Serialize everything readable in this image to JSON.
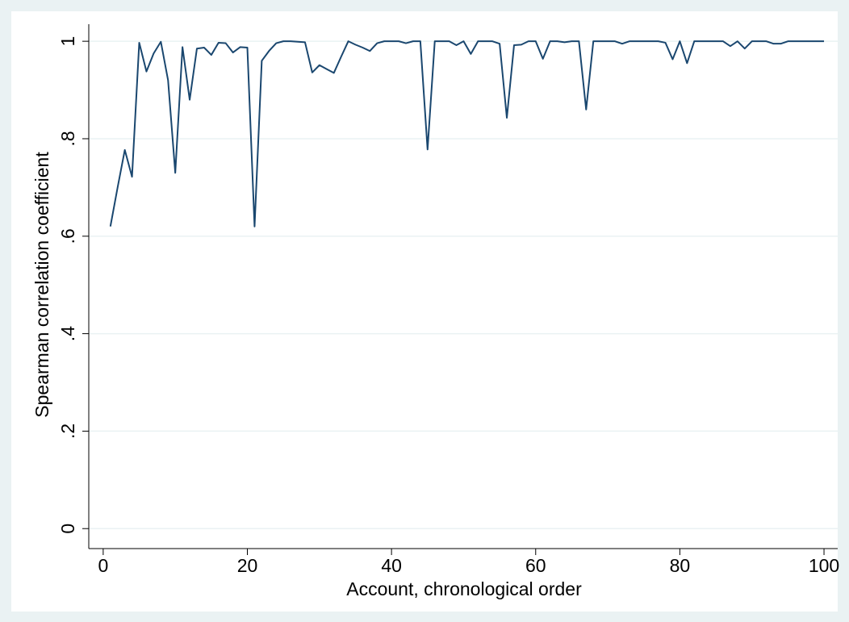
{
  "chart_data": {
    "type": "line",
    "xlabel": "Account, chronological order",
    "ylabel": "Spearman correlation coefficient",
    "x": [
      1,
      2,
      3,
      4,
      5,
      6,
      7,
      8,
      9,
      10,
      11,
      12,
      13,
      14,
      15,
      16,
      17,
      18,
      19,
      20,
      21,
      22,
      23,
      24,
      25,
      26,
      27,
      28,
      29,
      30,
      31,
      32,
      33,
      34,
      35,
      36,
      37,
      38,
      39,
      40,
      41,
      42,
      43,
      44,
      45,
      46,
      47,
      48,
      49,
      50,
      51,
      52,
      53,
      54,
      55,
      56,
      57,
      58,
      59,
      60,
      61,
      62,
      63,
      64,
      65,
      66,
      67,
      68,
      69,
      70,
      71,
      72,
      73,
      74,
      75,
      76,
      77,
      78,
      79,
      80,
      81,
      82,
      83,
      84,
      85,
      86,
      87,
      88,
      89,
      90,
      91,
      92,
      93,
      94,
      95,
      96,
      97,
      98,
      99,
      100
    ],
    "series": [
      {
        "name": "Spearman correlation coefficient",
        "color": "#1a476f",
        "values": [
          0.62,
          0.7,
          0.777,
          0.722,
          0.997,
          0.938,
          0.975,
          0.999,
          0.92,
          0.73,
          0.988,
          0.88,
          0.985,
          0.987,
          0.972,
          0.997,
          0.996,
          0.977,
          0.988,
          0.987,
          0.62,
          0.96,
          0.98,
          0.996,
          1,
          1,
          0.999,
          0.998,
          0.936,
          0.951,
          0.943,
          0.935,
          0.968,
          1,
          0.993,
          0.987,
          0.98,
          0.996,
          1,
          1,
          1,
          0.996,
          1,
          1,
          0.778,
          1,
          1,
          1,
          0.992,
          1,
          0.974,
          1,
          1,
          1,
          0.995,
          0.843,
          0.992,
          0.993,
          1,
          1,
          0.964,
          1,
          1,
          0.998,
          1,
          1,
          0.86,
          1,
          1,
          1,
          1,
          0.995,
          1,
          1,
          1,
          1,
          1,
          0.997,
          0.963,
          1,
          0.955,
          1,
          1,
          1,
          1,
          1,
          0.99,
          1,
          0.985,
          1,
          1,
          1,
          0.995,
          0.995,
          1,
          1,
          1,
          1,
          1,
          1
        ]
      }
    ],
    "xlim": [
      -2,
      101.9
    ],
    "ylim": [
      -0.041,
      1.035
    ],
    "xticks": [
      0,
      20,
      40,
      60,
      80,
      100
    ],
    "yticks": [
      0,
      {
        "value": 0.2,
        "label": ".2"
      },
      {
        "value": 0.4,
        "label": ".4"
      },
      {
        "value": 0.6,
        "label": ".6"
      },
      {
        "value": 0.8,
        "label": ".8"
      },
      1
    ],
    "grid": true
  }
}
